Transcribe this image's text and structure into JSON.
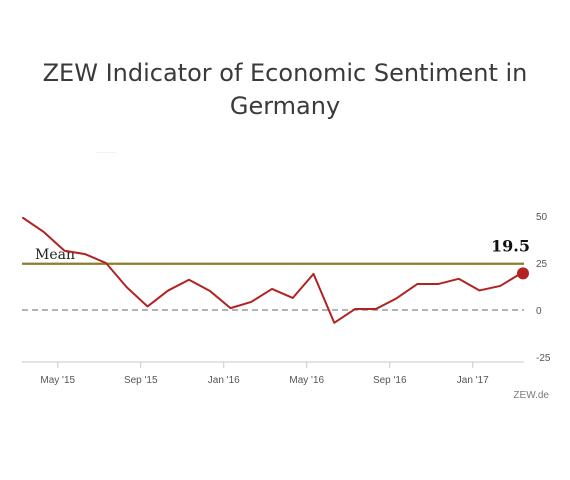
{
  "title": {
    "line1": "ZEW Indicator of Economic Sentiment in",
    "line2": "Germany"
  },
  "credit": "ZEW.de",
  "colors": {
    "series": "#b22222",
    "mean": "#8c7d2a",
    "zero": "#9a9a9a",
    "axis": "#c8c8c8",
    "tick_text": "#555555"
  },
  "chart_data": {
    "type": "line",
    "x": [
      "2015-04",
      "2015-05",
      "2015-06",
      "2015-07",
      "2015-08",
      "2015-09",
      "2015-10",
      "2015-11",
      "2015-12",
      "2016-01",
      "2016-02",
      "2016-03",
      "2016-04",
      "2016-05",
      "2016-06",
      "2016-07",
      "2016-08",
      "2016-09",
      "2016-10",
      "2016-11",
      "2016-12",
      "2017-01",
      "2017-02",
      "2017-03",
      "2017-04"
    ],
    "series": [
      {
        "values": [
          49.0,
          41.5,
          31.5,
          29.7,
          25.0,
          12.1,
          1.9,
          10.4,
          16.1,
          10.2,
          1.0,
          4.3,
          11.2,
          6.4,
          19.2,
          -6.8,
          0.5,
          0.5,
          6.2,
          13.8,
          13.8,
          16.6,
          10.4,
          12.8,
          19.5
        ]
      }
    ],
    "mean": {
      "label": "Mean",
      "value": 24.6
    },
    "highlight": {
      "label": "19.5",
      "index": 24
    },
    "ylim": [
      -25,
      50
    ],
    "yticks": [
      -25,
      0,
      25,
      50
    ],
    "xticks": [
      {
        "label": "May '15",
        "index": 1
      },
      {
        "label": "Sep '15",
        "index": 5
      },
      {
        "label": "Jan '16",
        "index": 9
      },
      {
        "label": "May '16",
        "index": 13
      },
      {
        "label": "Sep '16",
        "index": 17
      },
      {
        "label": "Jan '17",
        "index": 21
      }
    ],
    "grid": false,
    "xlabel": "",
    "ylabel": ""
  }
}
